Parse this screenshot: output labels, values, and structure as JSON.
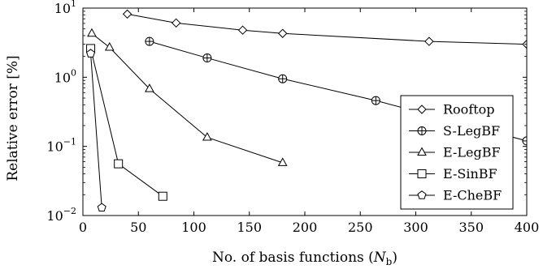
{
  "chart_data": {
    "type": "line",
    "title": "",
    "xlabel": "No. of basis functions (N_b)",
    "xlabel_parts": {
      "prefix": "No. of basis functions (",
      "var": "N",
      "sub": "b",
      "suffix": ")"
    },
    "ylabel": "Relative error [%]",
    "xlim": [
      0,
      400
    ],
    "ylim": [
      0.01,
      10
    ],
    "yscale": "log",
    "grid": false,
    "legend_position": "right",
    "x_ticks": [
      0,
      50,
      100,
      150,
      200,
      250,
      300,
      350,
      400
    ],
    "y_ticks": [
      {
        "value": 0.01,
        "base": "10",
        "exp": "−2"
      },
      {
        "value": 0.1,
        "base": "10",
        "exp": "−1"
      },
      {
        "value": 1,
        "base": "10",
        "exp": "0"
      },
      {
        "value": 10,
        "base": "10",
        "exp": "1"
      }
    ],
    "series": [
      {
        "name": "Rooftop",
        "marker": "diamond",
        "x": [
          40,
          84,
          144,
          180,
          312,
          400
        ],
        "y": [
          8.2,
          6.1,
          4.8,
          4.3,
          3.3,
          3.0
        ]
      },
      {
        "name": "S-LegBF",
        "marker": "circle-plus",
        "x": [
          60,
          112,
          180,
          264,
          400
        ],
        "y": [
          3.3,
          1.9,
          0.95,
          0.46,
          0.12
        ]
      },
      {
        "name": "E-LegBF",
        "marker": "triangle",
        "x": [
          8,
          24,
          60,
          112,
          180
        ],
        "y": [
          4.3,
          2.7,
          0.68,
          0.135,
          0.058
        ]
      },
      {
        "name": "E-SinBF",
        "marker": "square",
        "x": [
          7,
          32,
          72
        ],
        "y": [
          2.6,
          0.056,
          0.019
        ]
      },
      {
        "name": "E-CheBF",
        "marker": "pentagon",
        "x": [
          7,
          17
        ],
        "y": [
          2.2,
          0.013
        ]
      }
    ]
  }
}
